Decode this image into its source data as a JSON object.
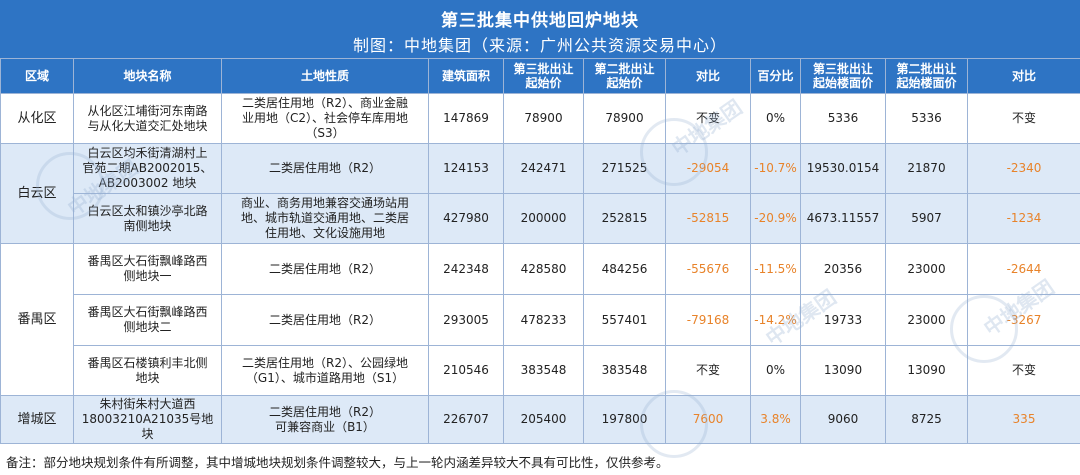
{
  "header": {
    "title": "第三批集中供地回炉地块",
    "subtitle": "制图：中地集团（来源：广州公共资源交易中心）"
  },
  "columns": {
    "area": "区域",
    "name": "地块名称",
    "use": "土地性质",
    "gfa": "建筑面积",
    "p3": [
      "第三批出让",
      "起始价"
    ],
    "p2": [
      "第二批出让",
      "起始价"
    ],
    "diff": "对比",
    "pct": "百分比",
    "f3": [
      "第三批出让",
      "起始楼面价"
    ],
    "f2": [
      "第二批出让",
      "起始楼面价"
    ],
    "fdiff": "对比"
  },
  "areas": {
    "conghua": "从化区",
    "baiyun": "白云区",
    "panyu": "番禺区",
    "zengcheng": "增城区"
  },
  "rows": [
    {
      "name": [
        "从化区江埔街河东南路",
        "与从化大道交汇处地块"
      ],
      "use": [
        "二类居住用地（R2）、商业金融",
        "业用地（C2）、社会停车库用地",
        "（S3）"
      ],
      "gfa": "147869",
      "p3": "78900",
      "p2": "78900",
      "diff": "不变",
      "pct": "0%",
      "f3": "5336",
      "f2": "5336",
      "fdiff": "不变"
    },
    {
      "name": [
        "白云区均禾街清湖村上",
        "官苑二期AB2002015、",
        "AB2003002 地块"
      ],
      "use": [
        "二类居住用地（R2）"
      ],
      "gfa": "124153",
      "p3": "242471",
      "p2": "271525",
      "diff": "-29054",
      "pct": "-10.7%",
      "f3": "19530.0154",
      "f2": "21870",
      "fdiff": "-2340"
    },
    {
      "name": [
        "白云区太和镇沙亭北路",
        "南侧地块"
      ],
      "use": [
        "商业、商务用地兼容交通场站用",
        "地、城市轨道交通用地、二类居",
        "住用地、文化设施用地"
      ],
      "gfa": "427980",
      "p3": "200000",
      "p2": "252815",
      "diff": "-52815",
      "pct": "-20.9%",
      "f3": "4673.11557",
      "f2": "5907",
      "fdiff": "-1234"
    },
    {
      "name": [
        "番禺区大石街飘峰路西",
        "侧地块一"
      ],
      "use": [
        "二类居住用地（R2）"
      ],
      "gfa": "242348",
      "p3": "428580",
      "p2": "484256",
      "diff": "-55676",
      "pct": "-11.5%",
      "f3": "20356",
      "f2": "23000",
      "fdiff": "-2644"
    },
    {
      "name": [
        "番禺区大石街飘峰路西",
        "侧地块二"
      ],
      "use": [
        "二类居住用地（R2）"
      ],
      "gfa": "293005",
      "p3": "478233",
      "p2": "557401",
      "diff": "-79168",
      "pct": "-14.2%",
      "f3": "19733",
      "f2": "23000",
      "fdiff": "-3267"
    },
    {
      "name": [
        "番禺区石楼镇利丰北侧",
        "地块"
      ],
      "use": [
        "二类居住用地（R2）、公园绿地",
        "（G1）、城市道路用地（S1）"
      ],
      "gfa": "210546",
      "p3": "383548",
      "p2": "383548",
      "diff": "不变",
      "pct": "0%",
      "f3": "13090",
      "f2": "13090",
      "fdiff": "不变"
    },
    {
      "name": [
        "朱村街朱村大道西",
        "18003210A21035号地块"
      ],
      "use": [
        "二类居住用地（R2）",
        "可兼容商业（B1）"
      ],
      "gfa": "226707",
      "p3": "205400",
      "p2": "197800",
      "diff": "7600",
      "pct": "3.8%",
      "f3": "9060",
      "f2": "8725",
      "fdiff": "335"
    }
  ],
  "note": "备注：部分地块规划条件有所调整，其中增城地块规划条件调整较大，与上一轮内涵差异较大不具有可比性，仅供参考。",
  "watermark": "中地集团",
  "colors": {
    "header_bg": "#2e74c4",
    "row_alt_bg": "#dde9f7",
    "highlight": "#e8832a"
  }
}
